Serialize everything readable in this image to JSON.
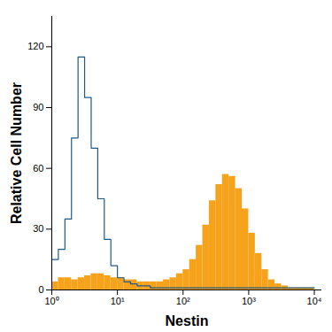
{
  "chart_data": {
    "type": "histogram",
    "x_label": "Nestin",
    "y_label": "Relative Cell Number",
    "log": "x",
    "grid": false,
    "xlim": [
      1,
      13000
    ],
    "ylim": [
      0,
      135
    ],
    "xticks": [
      {
        "value": 1,
        "label": "10⁰"
      },
      {
        "value": 10,
        "label": "10¹"
      },
      {
        "value": 100,
        "label": "10²"
      },
      {
        "value": 1000,
        "label": "10³"
      },
      {
        "value": 10000,
        "label": "10⁴"
      }
    ],
    "yticks": [
      0,
      30,
      60,
      90,
      120
    ],
    "bins": [
      1,
      1.259,
      1.585,
      1.995,
      2.512,
      3.162,
      3.981,
      5.012,
      6.31,
      7.943,
      10,
      12.59,
      15.85,
      19.95,
      25.12,
      31.62,
      39.81,
      50.12,
      63.1,
      79.43,
      100,
      125.9,
      158.5,
      199.5,
      251.2,
      316.2,
      398.1,
      501.2,
      631,
      794.3,
      1000,
      1259,
      1585,
      1995,
      2512,
      3162,
      3981,
      5012,
      6310,
      7943,
      10000
    ],
    "series": [
      {
        "type": "bar",
        "color": "#f7a21b",
        "values": [
          4,
          6,
          6,
          5,
          6,
          7,
          8,
          8,
          7,
          6,
          6,
          5,
          5,
          4,
          4,
          4,
          4,
          5,
          6,
          8,
          10,
          15,
          22,
          32,
          44,
          52,
          57,
          56,
          50,
          40,
          28,
          18,
          10,
          5,
          3,
          2,
          1,
          1,
          1,
          1
        ]
      },
      {
        "type": "line",
        "color": "#1f5a8a",
        "values": [
          15,
          20,
          35,
          75,
          115,
          95,
          70,
          45,
          25,
          12,
          6,
          4,
          3,
          2,
          2,
          1,
          1,
          1,
          1,
          1,
          1,
          1,
          1,
          1,
          1,
          1,
          1,
          1,
          1,
          1,
          1,
          1,
          1,
          1,
          1,
          1,
          1,
          1,
          1,
          1
        ]
      }
    ]
  }
}
